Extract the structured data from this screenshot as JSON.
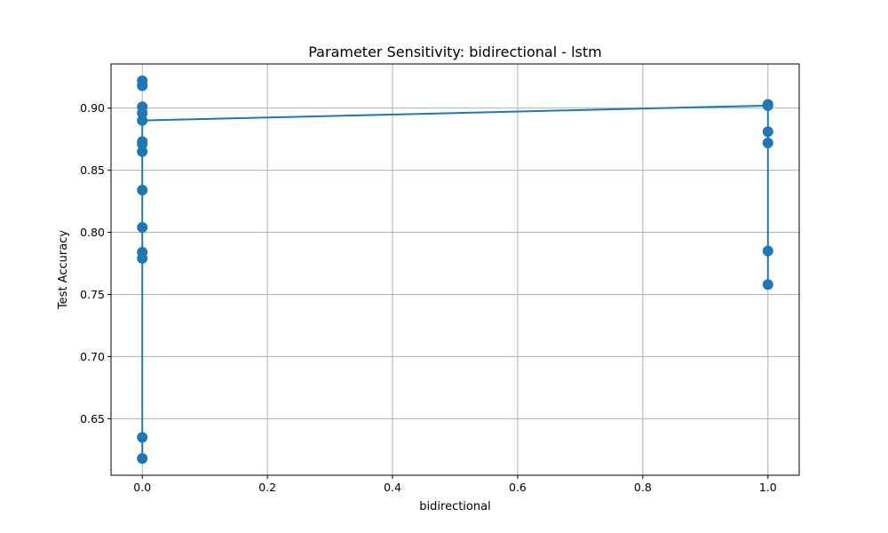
{
  "chart_data": {
    "type": "line",
    "title": "Parameter Sensitivity: bidirectional - lstm",
    "xlabel": "bidirectional",
    "ylabel": "Test Accuracy",
    "xlim": [
      -0.05,
      1.05
    ],
    "ylim": [
      0.6045,
      0.9355
    ],
    "xticks": [
      0.0,
      0.2,
      0.4,
      0.6,
      0.8,
      1.0
    ],
    "xtick_labels": [
      "0.0",
      "0.2",
      "0.4",
      "0.6",
      "0.8",
      "1.0"
    ],
    "yticks": [
      0.65,
      0.7,
      0.75,
      0.8,
      0.85,
      0.9
    ],
    "ytick_labels": [
      "0.65",
      "0.70",
      "0.75",
      "0.80",
      "0.85",
      "0.90"
    ],
    "grid": true,
    "series": [
      {
        "color": "#1f77b4",
        "marker": "circle",
        "x": [
          0,
          0,
          0,
          0,
          0,
          0,
          0,
          0,
          0,
          0,
          0,
          0,
          0,
          0,
          1,
          1,
          1,
          1,
          1,
          1
        ],
        "y": [
          0.618,
          0.635,
          0.779,
          0.784,
          0.804,
          0.834,
          0.865,
          0.871,
          0.873,
          0.89,
          0.896,
          0.901,
          0.918,
          0.922,
          0.758,
          0.785,
          0.872,
          0.881,
          0.902,
          0.903
        ],
        "line_path_x": [
          0,
          0,
          1,
          1
        ],
        "line_path_y": [
          0.618,
          0.89,
          0.902,
          0.758
        ]
      }
    ]
  }
}
